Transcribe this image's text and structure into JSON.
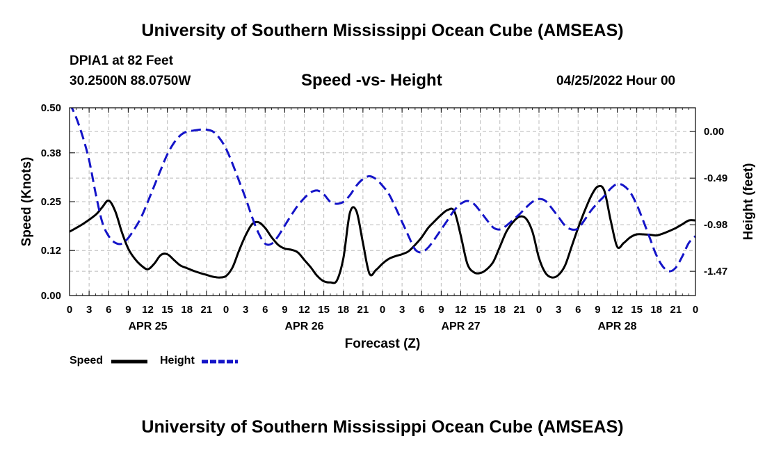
{
  "header": {
    "title": "University of Southern Mississippi Ocean Cube (AMSEAS)",
    "station": "DPIA1 at 82 Feet",
    "location": "30.2500N  88.0750W",
    "subtitle": "Speed -vs- Height",
    "datetime": "04/25/2022 Hour 00"
  },
  "footer": {
    "title": "University of Southern Mississippi Ocean Cube (AMSEAS)"
  },
  "legend": {
    "speed_label": "Speed",
    "height_label": "Height"
  },
  "colors": {
    "speed": "#000000",
    "height": "#1414c8",
    "grid": "#bbbbbb"
  },
  "chart_data": {
    "type": "line",
    "title": "Speed -vs- Height",
    "xlabel": "Forecast (Z)",
    "ylabel": "Speed (Knots)",
    "ylabel_right": "Height (feet)",
    "xlim": [
      0,
      96
    ],
    "ylim": [
      0,
      0.5
    ],
    "ylim_right": [
      -1.725,
      0.25
    ],
    "x_ticks": [
      0,
      3,
      6,
      9,
      12,
      15,
      18,
      21,
      24,
      27,
      30,
      33,
      36,
      39,
      42,
      45,
      48,
      51,
      54,
      57,
      60,
      63,
      66,
      69,
      72,
      75,
      78,
      81,
      84,
      87,
      90,
      93,
      96
    ],
    "x_tick_labels": [
      "0",
      "3",
      "6",
      "9",
      "12",
      "15",
      "18",
      "21",
      "0",
      "3",
      "6",
      "9",
      "12",
      "15",
      "18",
      "21",
      "0",
      "3",
      "6",
      "9",
      "12",
      "15",
      "18",
      "21",
      "0",
      "3",
      "6",
      "9",
      "12",
      "15",
      "18",
      "21",
      "0"
    ],
    "day_labels": [
      {
        "x": 12,
        "label": "APR 25"
      },
      {
        "x": 36,
        "label": "APR 26"
      },
      {
        "x": 60,
        "label": "APR 27"
      },
      {
        "x": 84,
        "label": "APR 28"
      }
    ],
    "y_ticks": [
      0.0,
      0.12,
      0.25,
      0.38,
      0.5
    ],
    "y_tick_labels": [
      "0.00",
      "0.12",
      "0.25",
      "0.38",
      "0.50"
    ],
    "y_right_ticks": [
      0.0,
      -0.49,
      -0.98,
      -1.47
    ],
    "y_right_tick_labels": [
      "0.00",
      "-0.49",
      "-0.98",
      "-1.47"
    ],
    "grid": true,
    "series": [
      {
        "name": "Speed",
        "axis": "left",
        "style": "solid",
        "x": [
          0,
          2,
          4,
          5,
          6,
          7,
          8,
          9,
          10,
          11,
          12,
          13,
          14,
          15,
          16,
          17,
          18,
          19,
          20,
          21,
          22,
          23,
          24,
          25,
          26,
          27,
          28,
          29,
          30,
          31,
          32,
          33,
          34,
          35,
          36,
          37,
          38,
          39,
          40,
          41,
          42,
          43,
          44,
          45,
          46,
          47,
          48,
          49,
          50,
          51,
          52,
          53,
          54,
          55,
          56,
          57,
          58,
          59,
          60,
          61,
          62,
          63,
          64,
          65,
          66,
          67,
          68,
          69,
          70,
          71,
          72,
          73,
          74,
          75,
          76,
          77,
          78,
          79,
          80,
          81,
          82,
          83,
          84,
          85,
          86,
          87,
          88,
          89,
          90,
          91,
          92,
          93,
          94,
          95,
          96
        ],
        "values": [
          0.17,
          0.19,
          0.215,
          0.235,
          0.253,
          0.225,
          0.17,
          0.125,
          0.098,
          0.08,
          0.07,
          0.085,
          0.108,
          0.11,
          0.095,
          0.08,
          0.073,
          0.066,
          0.06,
          0.055,
          0.05,
          0.048,
          0.052,
          0.075,
          0.12,
          0.16,
          0.19,
          0.195,
          0.18,
          0.155,
          0.135,
          0.125,
          0.122,
          0.115,
          0.095,
          0.075,
          0.052,
          0.038,
          0.035,
          0.04,
          0.1,
          0.22,
          0.225,
          0.14,
          0.058,
          0.068,
          0.085,
          0.098,
          0.105,
          0.11,
          0.118,
          0.135,
          0.155,
          0.18,
          0.198,
          0.215,
          0.228,
          0.225,
          0.16,
          0.085,
          0.062,
          0.06,
          0.07,
          0.09,
          0.13,
          0.17,
          0.195,
          0.21,
          0.205,
          0.17,
          0.1,
          0.06,
          0.048,
          0.055,
          0.08,
          0.13,
          0.18,
          0.225,
          0.265,
          0.29,
          0.28,
          0.2,
          0.13,
          0.14,
          0.155,
          0.163,
          0.163,
          0.162,
          0.16,
          0.165,
          0.172,
          0.18,
          0.19,
          0.2,
          0.2
        ]
      },
      {
        "name": "Height",
        "axis": "right",
        "style": "dashed",
        "x": [
          0,
          1,
          2,
          3,
          4,
          5,
          6,
          7,
          8,
          9,
          10,
          11,
          12,
          13,
          14,
          15,
          16,
          17,
          18,
          19,
          20,
          21,
          22,
          23,
          24,
          25,
          26,
          27,
          28,
          29,
          30,
          31,
          32,
          33,
          34,
          35,
          36,
          37,
          38,
          39,
          40,
          41,
          42,
          43,
          44,
          45,
          46,
          47,
          48,
          49,
          50,
          51,
          52,
          53,
          54,
          55,
          56,
          57,
          58,
          59,
          60,
          61,
          62,
          63,
          64,
          65,
          66,
          67,
          68,
          69,
          70,
          71,
          72,
          73,
          74,
          75,
          76,
          77,
          78,
          79,
          80,
          81,
          82,
          83,
          84,
          85,
          86,
          87,
          88,
          89,
          90,
          91,
          92,
          93,
          94,
          95,
          96
        ],
        "values": [
          0.3,
          0.15,
          -0.05,
          -0.3,
          -0.65,
          -0.95,
          -1.1,
          -1.17,
          -1.18,
          -1.12,
          -1.02,
          -0.9,
          -0.74,
          -0.57,
          -0.4,
          -0.24,
          -0.12,
          -0.04,
          0.0,
          0.01,
          0.02,
          0.02,
          0.0,
          -0.07,
          -0.18,
          -0.34,
          -0.52,
          -0.7,
          -0.9,
          -1.07,
          -1.18,
          -1.18,
          -1.1,
          -0.99,
          -0.88,
          -0.78,
          -0.7,
          -0.64,
          -0.62,
          -0.66,
          -0.74,
          -0.76,
          -0.74,
          -0.67,
          -0.57,
          -0.5,
          -0.47,
          -0.5,
          -0.57,
          -0.66,
          -0.8,
          -0.95,
          -1.1,
          -1.24,
          -1.27,
          -1.22,
          -1.13,
          -1.03,
          -0.93,
          -0.83,
          -0.76,
          -0.73,
          -0.76,
          -0.84,
          -0.93,
          -1.01,
          -1.03,
          -0.99,
          -0.93,
          -0.87,
          -0.8,
          -0.74,
          -0.71,
          -0.73,
          -0.81,
          -0.9,
          -0.99,
          -1.03,
          -1.02,
          -0.93,
          -0.83,
          -0.75,
          -0.68,
          -0.6,
          -0.55,
          -0.57,
          -0.64,
          -0.77,
          -0.94,
          -1.12,
          -1.3,
          -1.42,
          -1.47,
          -1.43,
          -1.31,
          -1.17,
          -1.1
        ]
      }
    ]
  }
}
